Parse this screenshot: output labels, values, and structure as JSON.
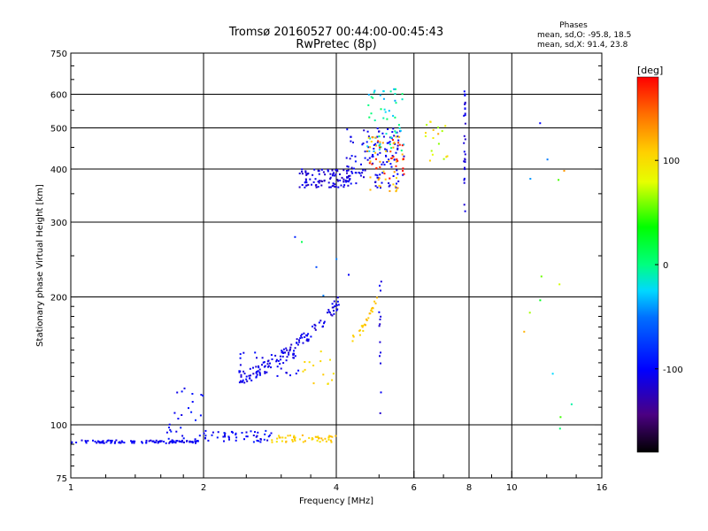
{
  "chart_data": {
    "type": "scatter",
    "title": "Tromsø 20160527 00:44:00-00:45:43",
    "subtitle": "RwPretec (8p)",
    "stats": {
      "heading": "Phases",
      "line_o": "mean, sd,O: -95.8, 18.5",
      "line_x": "mean, sd,X:  91.4, 23.8"
    },
    "xlabel": "Frequency [MHz]",
    "ylabel": "Stationary phase Virtual Height [km]",
    "x_scale": "log",
    "y_scale": "log",
    "xlim": [
      1,
      16
    ],
    "ylim": [
      75,
      750
    ],
    "xticks": [
      1,
      2,
      4,
      6,
      8,
      10,
      16
    ],
    "xtick_labels": [
      "1",
      "2",
      "4",
      "6",
      "8",
      "10",
      "16"
    ],
    "yticks": [
      75,
      100,
      200,
      300,
      400,
      500,
      600,
      750
    ],
    "ytick_labels": [
      "75",
      "100",
      "200",
      "300",
      "400",
      "500",
      "600",
      "750"
    ],
    "grid": true,
    "colorbar": {
      "label": "[deg]",
      "range": [
        -180,
        180
      ],
      "ticks": [
        100,
        0,
        -100
      ],
      "tick_labels": [
        "100",
        "0",
        "-100"
      ]
    },
    "clusters": [
      {
        "x0": 1.0,
        "x1": 1.95,
        "y0": 90.5,
        "y1": 92.0,
        "n": 110,
        "phase": [
          -115,
          -95
        ]
      },
      {
        "x0": 1.65,
        "x1": 2.0,
        "y0": 92,
        "y1": 125,
        "n": 26,
        "phase": [
          -110,
          -85
        ]
      },
      {
        "x0": 2.0,
        "x1": 2.85,
        "y0": 91,
        "y1": 97,
        "n": 50,
        "phase": [
          -115,
          -85
        ]
      },
      {
        "x0": 2.85,
        "x1": 4.0,
        "y0": 91,
        "y1": 94.5,
        "n": 50,
        "phase": [
          90,
          120
        ]
      },
      {
        "x0": 2.4,
        "x1": 4.1,
        "y0": 125,
        "y1": 205,
        "n": 130,
        "phase": [
          -120,
          -95
        ],
        "curve": true
      },
      {
        "x0": 2.4,
        "x1": 3.3,
        "y0": 130,
        "y1": 148,
        "n": 30,
        "phase": [
          -115,
          -95
        ]
      },
      {
        "x0": 3.3,
        "x1": 3.95,
        "y0": 123,
        "y1": 150,
        "n": 14,
        "phase": [
          95,
          120
        ]
      },
      {
        "x0": 4.3,
        "x1": 4.95,
        "y0": 155,
        "y1": 202,
        "n": 26,
        "phase": [
          100,
          120
        ],
        "curve": true
      },
      {
        "x0": 3.3,
        "x1": 4.3,
        "y0": 362,
        "y1": 400,
        "n": 95,
        "phase": [
          -125,
          -100
        ]
      },
      {
        "x0": 4.2,
        "x1": 5.7,
        "y0": 360,
        "y1": 500,
        "n": 120,
        "phase": [
          -120,
          -90
        ]
      },
      {
        "x0": 4.7,
        "x1": 5.7,
        "y0": 440,
        "y1": 620,
        "n": 50,
        "phase": [
          -40,
          10
        ]
      },
      {
        "x0": 4.7,
        "x1": 5.7,
        "y0": 350,
        "y1": 480,
        "n": 40,
        "phase": [
          100,
          130
        ]
      },
      {
        "x0": 4.7,
        "x1": 5.7,
        "y0": 380,
        "y1": 470,
        "n": 25,
        "phase": [
          160,
          180
        ]
      },
      {
        "x0": 6.3,
        "x1": 7.2,
        "y0": 410,
        "y1": 520,
        "n": 18,
        "phase": [
          60,
          130
        ]
      },
      {
        "x0": 7.78,
        "x1": 7.85,
        "y0": 285,
        "y1": 620,
        "n": 28,
        "phase": [
          -120,
          -100
        ]
      },
      {
        "x0": 5.0,
        "x1": 5.06,
        "y0": 100,
        "y1": 235,
        "n": 14,
        "phase": [
          -120,
          -100
        ]
      },
      {
        "x0": 10.5,
        "x1": 14.0,
        "y0": 95,
        "y1": 580,
        "n": 14,
        "phase": [
          -120,
          130
        ]
      },
      {
        "x0": 3.0,
        "x1": 4.4,
        "y0": 200,
        "y1": 280,
        "n": 6,
        "phase": [
          -110,
          120
        ]
      }
    ]
  }
}
